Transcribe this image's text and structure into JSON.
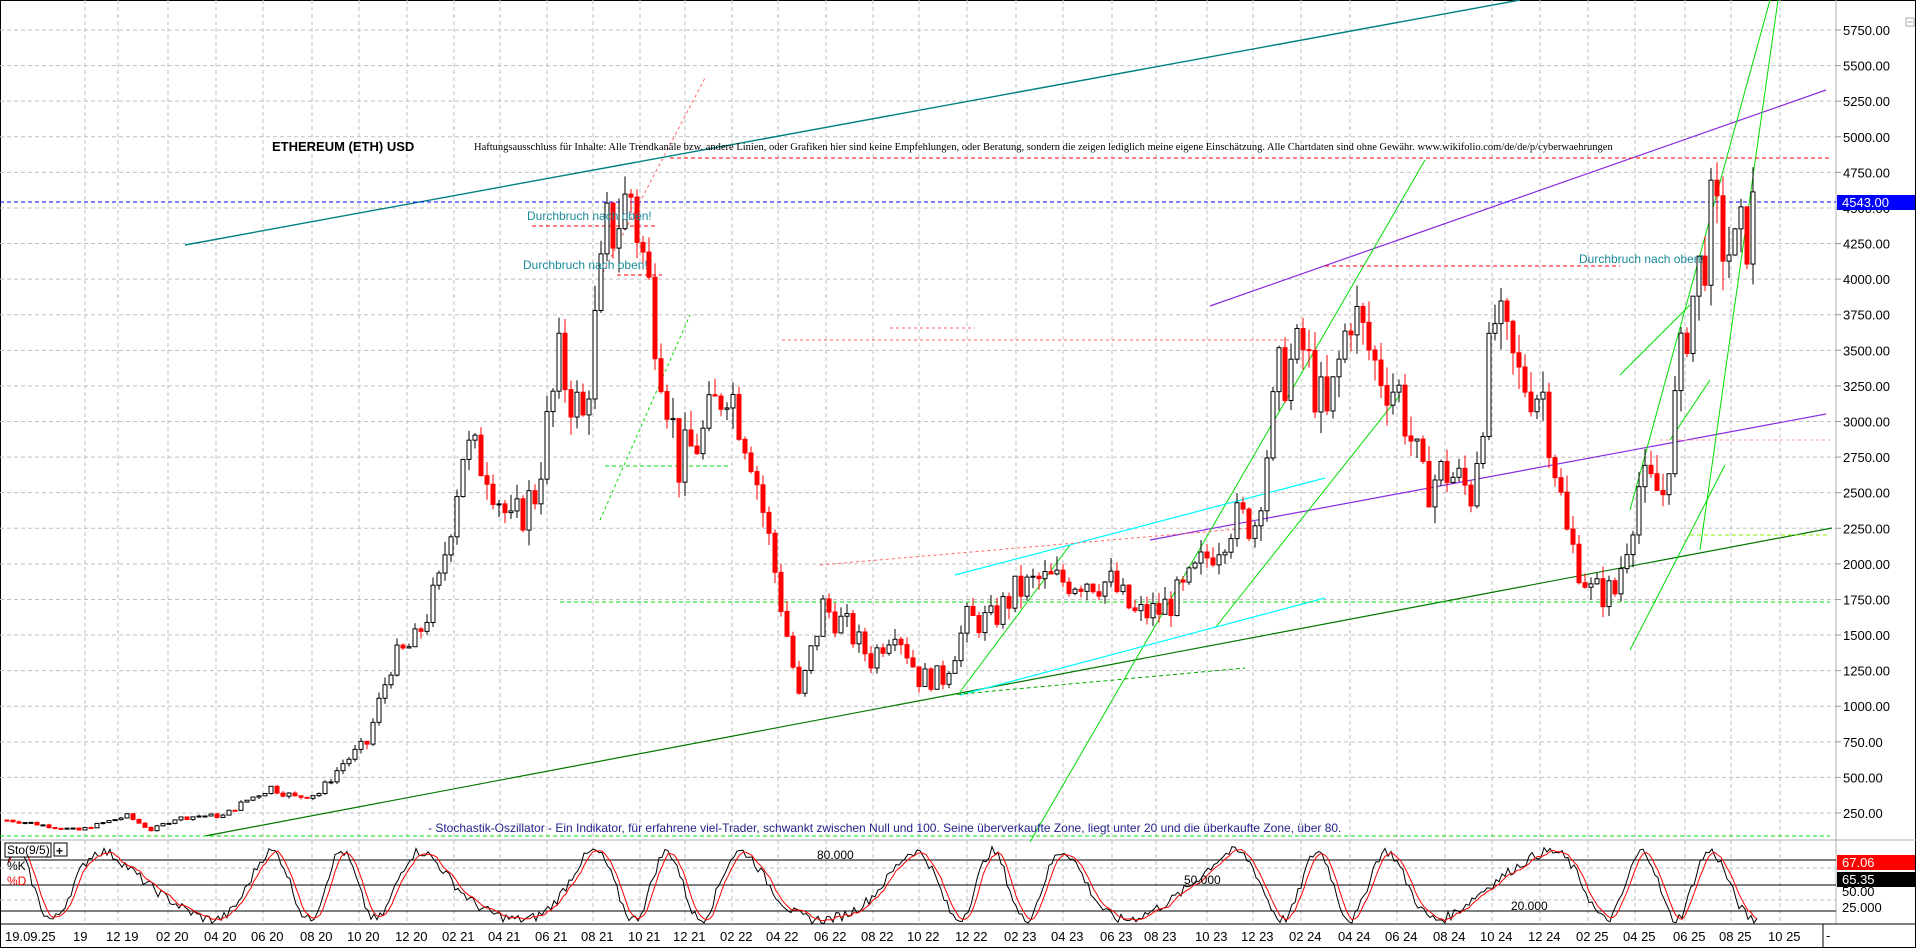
{
  "chart_data": {
    "type": "line",
    "title": "ETHEREUM (ETH) USD",
    "subtitle": "Haftungsausschluss für Inhalte: Alle Trendkanäle bzw. andere Linien, oder Grafiken hier sind keine Empfehlungen, oder Beratung, sondern die zeigen lediglich meine eigene Einschätzung. Alle Chartdaten sind ohne Gewähr.  www.wikifolio.com/de/de/p/cyberwaehrungen",
    "xlabel": "",
    "ylabel": "",
    "ylim": [
      0,
      5900
    ],
    "y_ticks": [
      "5750.00",
      "5500.00",
      "5250.00",
      "5000.00",
      "4750.00",
      "4500.00",
      "4250.00",
      "4000.00",
      "3750.00",
      "3500.00",
      "3250.00",
      "3000.00",
      "2750.00",
      "2500.00",
      "2250.00",
      "2000.00",
      "1750.00",
      "1500.00",
      "1250.00",
      "1000.00",
      "750.00",
      "500.00",
      "250.00"
    ],
    "x_ticks": [
      "19.09.25",
      "19",
      "12 19",
      "02 20",
      "04 20",
      "06 20",
      "08 20",
      "10 20",
      "12 20",
      "02 21",
      "04 21",
      "06 21",
      "08 21",
      "10 21",
      "12 21",
      "02 22",
      "04 22",
      "06 22",
      "08 22",
      "10 22",
      "12 22",
      "02 23",
      "04 23",
      "06 23",
      "08 23",
      "10 23",
      "12 23",
      "02 24",
      "04 24",
      "06 24",
      "08 24",
      "10 24",
      "12 24",
      "02 25",
      "04 25",
      "06 25",
      "08 25",
      "10 25"
    ],
    "grid": true,
    "series": [
      {
        "name": "ETH/USD close (approx.)",
        "x": [
          "09.19",
          "10.19",
          "11.19",
          "12.19",
          "01.20",
          "02.20",
          "03.20",
          "04.20",
          "05.20",
          "06.20",
          "07.20",
          "08.20",
          "09.20",
          "10.20",
          "11.20",
          "12.20",
          "01.21",
          "02.21",
          "03.21",
          "04.21",
          "05.21",
          "06.21",
          "07.21",
          "08.21",
          "09.21",
          "10.21",
          "11.21",
          "12.21",
          "01.22",
          "02.22",
          "03.22",
          "04.22",
          "05.22",
          "06.22",
          "07.22",
          "08.22",
          "09.22",
          "10.22",
          "11.22",
          "12.22",
          "01.23",
          "02.23",
          "03.23",
          "04.23",
          "05.23",
          "06.23",
          "07.23",
          "08.23",
          "09.23",
          "10.23",
          "11.23",
          "12.23",
          "01.24",
          "02.24",
          "03.24",
          "04.24",
          "05.24",
          "06.24",
          "07.24",
          "08.24",
          "09.24",
          "10.24",
          "11.24",
          "12.24",
          "01.25",
          "02.25",
          "03.25",
          "04.25",
          "05.25",
          "06.25",
          "07.25",
          "08.25",
          "09.25",
          "10.25"
        ],
        "values": [
          200,
          180,
          150,
          130,
          180,
          230,
          130,
          210,
          230,
          230,
          340,
          430,
          360,
          390,
          600,
          740,
          1300,
          1450,
          1850,
          2800,
          2700,
          2250,
          2500,
          3400,
          3000,
          4300,
          4600,
          3700,
          2700,
          2900,
          3300,
          2800,
          1950,
          1050,
          1700,
          1550,
          1330,
          1580,
          1200,
          1200,
          1600,
          1600,
          1800,
          1880,
          1880,
          1900,
          1860,
          1640,
          1670,
          1800,
          2050,
          2300,
          2300,
          3300,
          3500,
          3000,
          3800,
          3400,
          3200,
          2550,
          2650,
          2500,
          3700,
          3300,
          3200,
          2200,
          1800,
          1800,
          2550,
          2500,
          3700,
          4400,
          4150,
          4543
        ]
      },
      {
        "name": "Sto(9/5) %K",
        "color": "#000000",
        "last": "65.35"
      },
      {
        "name": "Sto(9/5) %D",
        "color": "#ff0000",
        "last": "67.06"
      }
    ],
    "current_price": "4543.00",
    "annotations": [
      "Durchbruch nach oben!",
      "Durchbruch nach oben!",
      "Durchbruch nach oben!"
    ],
    "indicator": {
      "name": "Sto(9/5)",
      "legend": [
        "%K",
        "%D"
      ],
      "levels": [
        "80.000",
        "50.000",
        "20.000"
      ],
      "y_ticks": [
        "25.000"
      ],
      "level_values": [
        80,
        50,
        20
      ],
      "last_k": "65.35",
      "last_d": "67.06"
    },
    "legend_position": "none"
  },
  "header": {
    "title": "ETHEREUM (ETH) USD",
    "disclaimer": "Haftungsausschluss für Inhalte: Alle Trendkanäle bzw. andere Linien, oder Grafiken hier sind keine Empfehlungen, oder Beratung, sondern die zeigen lediglich meine eigene Einschätzung. Alle Chartdaten sind ohne Gewähr.  www.wikifolio.com/de/de/p/cyberwaehrungen"
  },
  "annotations": {
    "a1": "Durchbruch nach oben!",
    "a2": "Durchbruch nach oben!",
    "a3": "Durchbruch nach oben!",
    "stochastic_note": "- Stochastik-Oszillator - Ein Indikator, für erfahrene viel-Trader, schwankt zwischen Null und 100. Seine überverkaufte Zone, liegt unter 20 und die überkaufte Zone, über 80."
  },
  "price_axis": {
    "current_label": "4543.00",
    "current_color": "#0000ff",
    "collapse_button": "−"
  },
  "indicator_panel": {
    "name": "Sto(9/5)",
    "add_button": "+",
    "k_label": "%K",
    "d_label": "%D",
    "level_80": "80.000",
    "level_50": "50.000",
    "level_20": "20.000",
    "axis_25": "25.000",
    "axis_50": "50.00",
    "last_d": "67.06",
    "last_k": "65.35",
    "d_color": "#ff0000",
    "k_color": "#000000"
  },
  "time_axis": {
    "labels": [
      "19.09.25",
      "19",
      "12 19",
      "02 20",
      "04 20",
      "06 20",
      "08 20",
      "10 20",
      "12 20",
      "02 21",
      "04 21",
      "06 21",
      "08 21",
      "10 21",
      "12 21",
      "02 22",
      "04 22",
      "06 22",
      "08 22",
      "10 22",
      "12 22",
      "02 23",
      "04 23",
      "06 23",
      "08 23",
      "10 23",
      "12 23",
      "02 24",
      "04 24",
      "06 24",
      "08 24",
      "10 24",
      "12 24",
      "02 25",
      "04 25",
      "06 25",
      "08 25",
      "10 25"
    ],
    "scroll_minus": "-"
  },
  "colors": {
    "up_candle": "#000000",
    "down_candle": "#ff0000",
    "grid": "#c0c0c0",
    "teal_trend": "#008080",
    "purple_trend": "#8a2be2",
    "green_trend": "#00dd00",
    "darkgreen_trend": "#007700",
    "cyan_trend": "#00ffff"
  }
}
